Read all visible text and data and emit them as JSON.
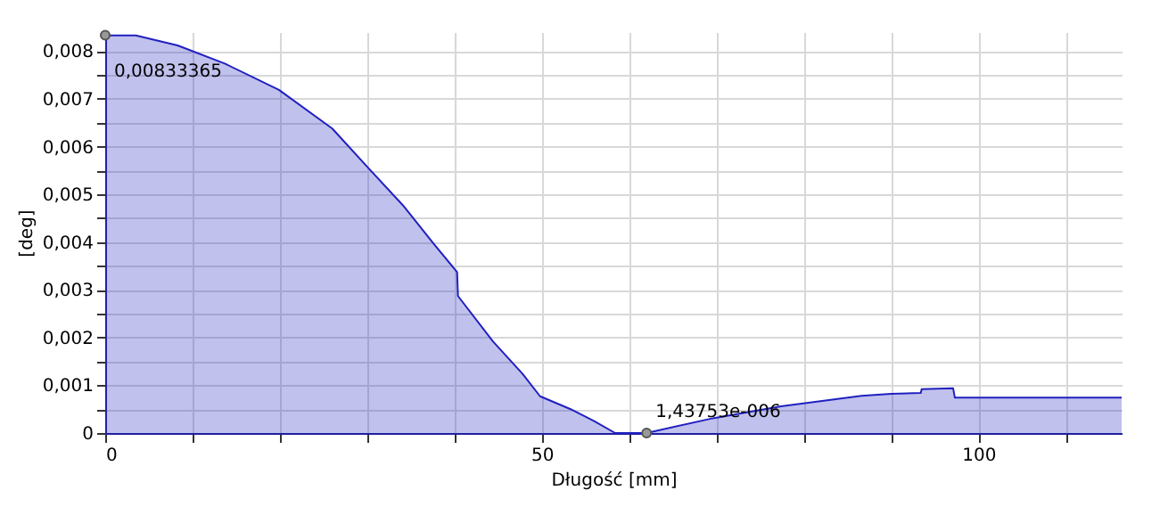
{
  "chart_data": {
    "type": "area",
    "xlabel": "Długość [mm]",
    "ylabel": "[deg]",
    "x": [
      0,
      3.5,
      8.3,
      13.7,
      19.9,
      26,
      30,
      34.1,
      37.6,
      40.3,
      40.4,
      44.4,
      47.8,
      49.8,
      53.3,
      56,
      58.4,
      60.1,
      62,
      69.6,
      77.4,
      86.6,
      90,
      93.4,
      93.5,
      97.1,
      97.3,
      116.4
    ],
    "series": [
      {
        "color": "#2020c0",
        "values": [
          0.00833,
          0.00833,
          0.00812,
          0.00774,
          0.00719,
          0.00638,
          0.00558,
          0.00477,
          0.00397,
          0.00337,
          0.00287,
          0.00192,
          0.00124,
          0.00077,
          0.0005,
          0.00025,
          0,
          0,
          0,
          0.00031,
          0.00056,
          0.00078,
          0.00082,
          0.00084,
          0.00092,
          0.00094,
          0.00074,
          0.00074
        ]
      }
    ],
    "annotations": [
      {
        "text": "0,00833365",
        "x": 0,
        "y": 0.00833365
      },
      {
        "text": "1,43753e-006",
        "x": 62,
        "y": 1.43753e-06
      }
    ],
    "xlim": [
      0,
      116.4
    ],
    "ylim": [
      0,
      0.0084
    ],
    "xticks": [
      0,
      {
        "value": 10,
        "label": null
      },
      {
        "value": 20,
        "label": null
      },
      {
        "value": 30,
        "label": null
      },
      {
        "value": 40,
        "label": null
      },
      50,
      {
        "value": 60,
        "label": null
      },
      {
        "value": 70,
        "label": null
      },
      {
        "value": 80,
        "label": null
      },
      {
        "value": 90,
        "label": null
      },
      100,
      {
        "value": 110,
        "label": null
      }
    ],
    "yticks": [
      0,
      {
        "value": 0.0005,
        "label": null
      },
      {
        "value": 0.001,
        "label": "0,001"
      },
      {
        "value": 0.0015,
        "label": null
      },
      {
        "value": 0.002,
        "label": "0,002"
      },
      {
        "value": 0.0025,
        "label": null
      },
      {
        "value": 0.003,
        "label": "0,003"
      },
      {
        "value": 0.0035,
        "label": null
      },
      {
        "value": 0.004,
        "label": "0,004"
      },
      {
        "value": 0.0045,
        "label": null
      },
      {
        "value": 0.005,
        "label": "0,005"
      },
      {
        "value": 0.0055,
        "label": null
      },
      {
        "value": 0.006,
        "label": "0,006"
      },
      {
        "value": 0.0065,
        "label": null
      },
      {
        "value": 0.007,
        "label": "0,007"
      },
      {
        "value": 0.0075,
        "label": null
      },
      {
        "value": 0.008,
        "label": "0,008"
      }
    ],
    "grid": true
  }
}
